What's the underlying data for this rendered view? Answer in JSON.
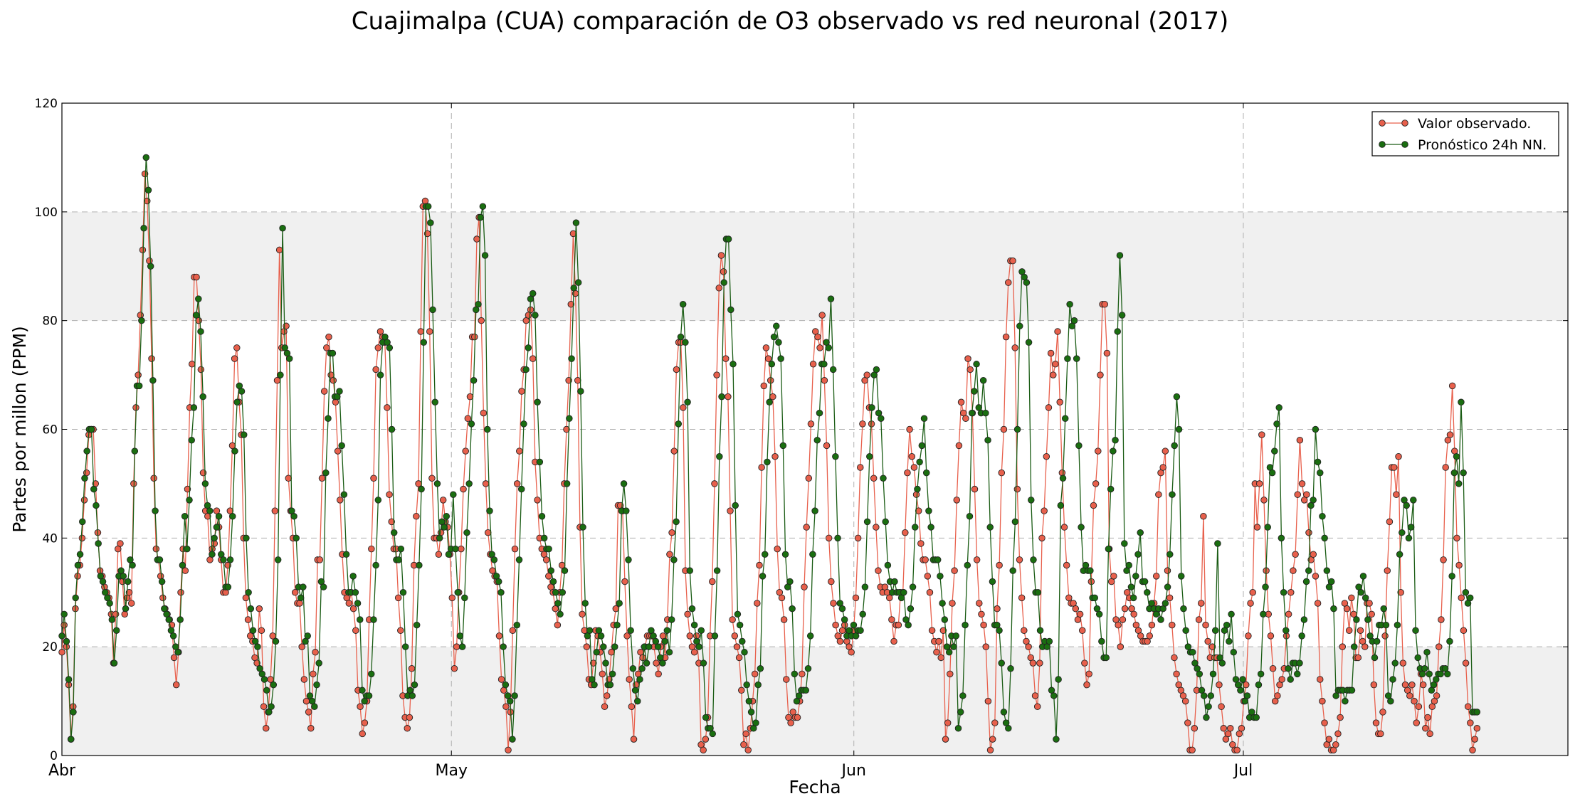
{
  "chart_data": {
    "type": "line",
    "title": "Cuajimalpa (CUA) comparación de O3 observado vs red neuronal (2017)",
    "xlabel": "Fecha",
    "ylabel": "Partes por millon (PPM)",
    "ylim": [
      0,
      120
    ],
    "yticks": [
      0,
      20,
      40,
      60,
      80,
      100,
      120
    ],
    "grid": true,
    "legend_position": "top-right",
    "x_unit": "date",
    "x_start": "2017-04-01",
    "x_end": "2017-07-26",
    "xticks": [
      {
        "date": "2017-04-01",
        "label": "Abr"
      },
      {
        "date": "2017-05-01",
        "label": "May"
      },
      {
        "date": "2017-06-01",
        "label": "Jun"
      },
      {
        "date": "2017-07-01",
        "label": "Jul"
      }
    ],
    "series": [
      {
        "name": "Valor observado.",
        "color": "#e8604c",
        "x_start": "2017-04-01",
        "x_end": "2017-07-19",
        "values": [
          19,
          24,
          20,
          13,
          3,
          9,
          27,
          33,
          35,
          40,
          47,
          52,
          59,
          60,
          60,
          50,
          41,
          34,
          33,
          31,
          30,
          29,
          26,
          17,
          26,
          38,
          39,
          32,
          26,
          29,
          30,
          28,
          50,
          64,
          70,
          81,
          93,
          107,
          102,
          91,
          73,
          51,
          38,
          36,
          33,
          29,
          27,
          26,
          25,
          24,
          18,
          13,
          19,
          30,
          38,
          34,
          49,
          64,
          72,
          88,
          88,
          80,
          71,
          52,
          45,
          44,
          36,
          38,
          39,
          45,
          42,
          36,
          30,
          30,
          35,
          45,
          57,
          73,
          75,
          65,
          59,
          40,
          29,
          25,
          22,
          21,
          18,
          17,
          27,
          23,
          9,
          5,
          8,
          14,
          22,
          45,
          69,
          93,
          75,
          78,
          79,
          51,
          45,
          40,
          30,
          28,
          28,
          20,
          14,
          10,
          8,
          5,
          15,
          19,
          36,
          36,
          51,
          67,
          75,
          77,
          70,
          69,
          65,
          56,
          47,
          37,
          30,
          29,
          28,
          30,
          27,
          23,
          12,
          9,
          4,
          6,
          10,
          25,
          38,
          51,
          71,
          75,
          78,
          77,
          76,
          64,
          48,
          43,
          38,
          38,
          29,
          23,
          11,
          7,
          5,
          7,
          16,
          35,
          44,
          50,
          78,
          101,
          102,
          96,
          78,
          51,
          40,
          40,
          37,
          41,
          47,
          43,
          42,
          37,
          29,
          16,
          20,
          30,
          38,
          49,
          56,
          62,
          66,
          77,
          77,
          95,
          99,
          80,
          63,
          50,
          41,
          37,
          34,
          33,
          32,
          22,
          14,
          12,
          9,
          1,
          8,
          23,
          38,
          50,
          56,
          67,
          71,
          80,
          81,
          82,
          73,
          54,
          47,
          40,
          38,
          37,
          36,
          33,
          31,
          30,
          27,
          24,
          30,
          35,
          50,
          60,
          69,
          83,
          96,
          85,
          69,
          42,
          26,
          23,
          20,
          14,
          13,
          17,
          23,
          22,
          19,
          15,
          9,
          11,
          14,
          19,
          24,
          27,
          46,
          46,
          45,
          32,
          22,
          14,
          9,
          3,
          13,
          15,
          19,
          18,
          20,
          22,
          22,
          22,
          20,
          17,
          15,
          20,
          22,
          18,
          25,
          37,
          41,
          56,
          71,
          76,
          76,
          64,
          34,
          26,
          22,
          20,
          19,
          22,
          17,
          2,
          1,
          3,
          7,
          22,
          32,
          50,
          70,
          86,
          92,
          89,
          73,
          66,
          45,
          25,
          22,
          20,
          18,
          12,
          2,
          4,
          1,
          5,
          10,
          15,
          28,
          35,
          53,
          68,
          75,
          73,
          69,
          66,
          55,
          38,
          30,
          29,
          25,
          14,
          7,
          6,
          8,
          7,
          7,
          10,
          15,
          31,
          42,
          51,
          61,
          72,
          78,
          77,
          75,
          81,
          69,
          57,
          40,
          32,
          28,
          24,
          22,
          21,
          23,
          24,
          21,
          20,
          19,
          23,
          29,
          40,
          53,
          61,
          69,
          70,
          64,
          61,
          51,
          42,
          34,
          31,
          30,
          31,
          30,
          29,
          25,
          21,
          24,
          24,
          30,
          30,
          41,
          52,
          60,
          55,
          53,
          48,
          45,
          39,
          36,
          36,
          33,
          30,
          23,
          21,
          19,
          21,
          18,
          23,
          3,
          6,
          15,
          28,
          34,
          47,
          57,
          65,
          63,
          62,
          73,
          71,
          63,
          49,
          36,
          28,
          26,
          24,
          20,
          10,
          1,
          3,
          6,
          27,
          35,
          52,
          60,
          77,
          87,
          91,
          91,
          75,
          49,
          36,
          29,
          23,
          21,
          20,
          18,
          17,
          11,
          9,
          17,
          40,
          45,
          55,
          64,
          74,
          70,
          72,
          78,
          65,
          52,
          42,
          35,
          29,
          28,
          28,
          27,
          25,
          26,
          23,
          17,
          13,
          15,
          32,
          46,
          50,
          56,
          70,
          83,
          83,
          74,
          38,
          32,
          33,
          25,
          24,
          20,
          25,
          27,
          30,
          29,
          27,
          26,
          24,
          23,
          22,
          21,
          21,
          21,
          22,
          24,
          28,
          33,
          48,
          52,
          53,
          56,
          34,
          29,
          24,
          18,
          15,
          13,
          12,
          11,
          10,
          6,
          1,
          1,
          5,
          12,
          25,
          28,
          44,
          24,
          21,
          18,
          20,
          18,
          18,
          13,
          9,
          5,
          3,
          4,
          5,
          2,
          1,
          1,
          4,
          5,
          10,
          13,
          22,
          28,
          30,
          50,
          42,
          50,
          59,
          47,
          34,
          26,
          22,
          16,
          10,
          11,
          13,
          14,
          16,
          22,
          26,
          30,
          34,
          37,
          48,
          58,
          50,
          47,
          48,
          41,
          36,
          37,
          33,
          28,
          14,
          10,
          6,
          2,
          3,
          1,
          1,
          2,
          4,
          7,
          20,
          28,
          27,
          23,
          29,
          26,
          18,
          18,
          23,
          21,
          20,
          28,
          28,
          26,
          13,
          6,
          4,
          4,
          8,
          22,
          34,
          43,
          53,
          53,
          48,
          55,
          30,
          17,
          13,
          12,
          11,
          13,
          10,
          6,
          9,
          15,
          13,
          5,
          7,
          4,
          9,
          10,
          11,
          20,
          25,
          36,
          53,
          58,
          59,
          68,
          56,
          40,
          35,
          29,
          23,
          17,
          9,
          6,
          1,
          3,
          5
        ]
      },
      {
        "name": "Pronóstico 24h NN.",
        "color": "#1a5c14",
        "x_start": "2017-04-01",
        "x_end": "2017-07-19",
        "values": [
          22,
          26,
          21,
          14,
          3,
          8,
          29,
          35,
          37,
          43,
          51,
          56,
          60,
          60,
          49,
          46,
          39,
          33,
          32,
          30,
          29,
          28,
          25,
          17,
          23,
          33,
          34,
          33,
          27,
          32,
          36,
          35,
          56,
          68,
          68,
          80,
          97,
          110,
          104,
          90,
          69,
          45,
          36,
          36,
          32,
          27,
          26,
          25,
          23,
          22,
          20,
          19,
          25,
          35,
          44,
          38,
          47,
          58,
          64,
          81,
          84,
          78,
          66,
          50,
          46,
          45,
          37,
          40,
          42,
          44,
          37,
          36,
          31,
          31,
          36,
          44,
          56,
          65,
          68,
          67,
          59,
          40,
          30,
          27,
          23,
          21,
          20,
          16,
          15,
          14,
          12,
          8,
          9,
          13,
          21,
          36,
          70,
          97,
          75,
          74,
          73,
          45,
          44,
          40,
          31,
          29,
          31,
          21,
          22,
          11,
          10,
          9,
          13,
          17,
          32,
          31,
          52,
          62,
          74,
          74,
          66,
          66,
          67,
          57,
          48,
          37,
          30,
          30,
          33,
          30,
          28,
          25,
          12,
          10,
          11,
          11,
          15,
          25,
          35,
          47,
          70,
          76,
          77,
          76,
          75,
          60,
          41,
          36,
          36,
          38,
          30,
          20,
          11,
          12,
          11,
          13,
          24,
          35,
          49,
          76,
          101,
          101,
          98,
          82,
          65,
          50,
          40,
          43,
          42,
          44,
          37,
          38,
          48,
          38,
          30,
          22,
          20,
          29,
          41,
          50,
          61,
          69,
          82,
          83,
          99,
          101,
          92,
          60,
          45,
          37,
          36,
          33,
          32,
          30,
          20,
          13,
          11,
          10,
          3,
          11,
          24,
          36,
          49,
          61,
          71,
          75,
          84,
          85,
          81,
          65,
          54,
          44,
          40,
          38,
          38,
          34,
          32,
          30,
          28,
          26,
          30,
          34,
          50,
          62,
          73,
          86,
          98,
          87,
          67,
          42,
          28,
          22,
          23,
          14,
          13,
          19,
          23,
          22,
          20,
          17,
          13,
          13,
          15,
          20,
          24,
          28,
          45,
          50,
          45,
          36,
          23,
          16,
          12,
          10,
          14,
          16,
          20,
          17,
          20,
          23,
          22,
          21,
          20,
          18,
          17,
          21,
          23,
          19,
          25,
          36,
          43,
          61,
          77,
          83,
          76,
          65,
          34,
          27,
          24,
          21,
          20,
          23,
          17,
          7,
          5,
          5,
          4,
          22,
          34,
          55,
          66,
          87,
          95,
          95,
          82,
          72,
          46,
          26,
          24,
          21,
          19,
          13,
          10,
          8,
          5,
          6,
          13,
          16,
          33,
          37,
          54,
          65,
          72,
          77,
          79,
          76,
          73,
          57,
          37,
          31,
          32,
          27,
          15,
          10,
          11,
          12,
          12,
          12,
          16,
          22,
          37,
          45,
          58,
          63,
          72,
          72,
          76,
          75,
          84,
          71,
          55,
          40,
          28,
          27,
          25,
          22,
          23,
          22,
          24,
          22,
          23,
          23,
          26,
          31,
          43,
          55,
          64,
          70,
          71,
          63,
          62,
          51,
          43,
          35,
          32,
          30,
          32,
          30,
          30,
          29,
          30,
          25,
          24,
          27,
          31,
          42,
          49,
          54,
          57,
          62,
          52,
          45,
          42,
          36,
          36,
          36,
          33,
          28,
          25,
          20,
          19,
          22,
          20,
          22,
          5,
          8,
          11,
          24,
          35,
          44,
          63,
          67,
          72,
          64,
          63,
          69,
          63,
          58,
          42,
          32,
          24,
          24,
          23,
          17,
          8,
          6,
          5,
          16,
          34,
          43,
          60,
          79,
          89,
          88,
          87,
          76,
          47,
          36,
          30,
          30,
          23,
          20,
          21,
          20,
          21,
          12,
          11,
          3,
          14,
          46,
          51,
          62,
          73,
          83,
          79,
          80,
          73,
          57,
          42,
          34,
          35,
          34,
          34,
          29,
          29,
          27,
          26,
          21,
          18,
          18,
          38,
          49,
          56,
          58,
          78,
          92,
          81,
          39,
          34,
          35,
          31,
          29,
          33,
          37,
          41,
          32,
          32,
          30,
          27,
          28,
          27,
          26,
          27,
          25,
          27,
          28,
          31,
          37,
          48,
          57,
          66,
          60,
          33,
          27,
          23,
          20,
          19,
          19,
          17,
          16,
          15,
          12,
          11,
          7,
          9,
          11,
          15,
          23,
          39,
          18,
          17,
          23,
          24,
          21,
          26,
          19,
          14,
          13,
          12,
          14,
          10,
          11,
          7,
          8,
          7,
          7,
          13,
          15,
          26,
          31,
          42,
          53,
          52,
          56,
          61,
          64,
          40,
          30,
          23,
          16,
          14,
          17,
          17,
          15,
          17,
          22,
          25,
          32,
          34,
          46,
          47,
          60,
          54,
          52,
          44,
          40,
          34,
          31,
          32,
          27,
          11,
          12,
          12,
          12,
          10,
          12,
          12,
          12,
          20,
          25,
          31,
          30,
          33,
          29,
          25,
          22,
          21,
          18,
          21,
          24,
          24,
          27,
          24,
          11,
          10,
          14,
          17,
          24,
          37,
          41,
          47,
          46,
          40,
          42,
          47,
          23,
          18,
          16,
          15,
          16,
          19,
          15,
          12,
          13,
          14,
          15,
          15,
          16,
          16,
          15,
          21,
          33,
          52,
          55,
          50,
          65,
          52,
          30,
          28,
          29,
          8,
          8,
          8
        ]
      }
    ]
  }
}
